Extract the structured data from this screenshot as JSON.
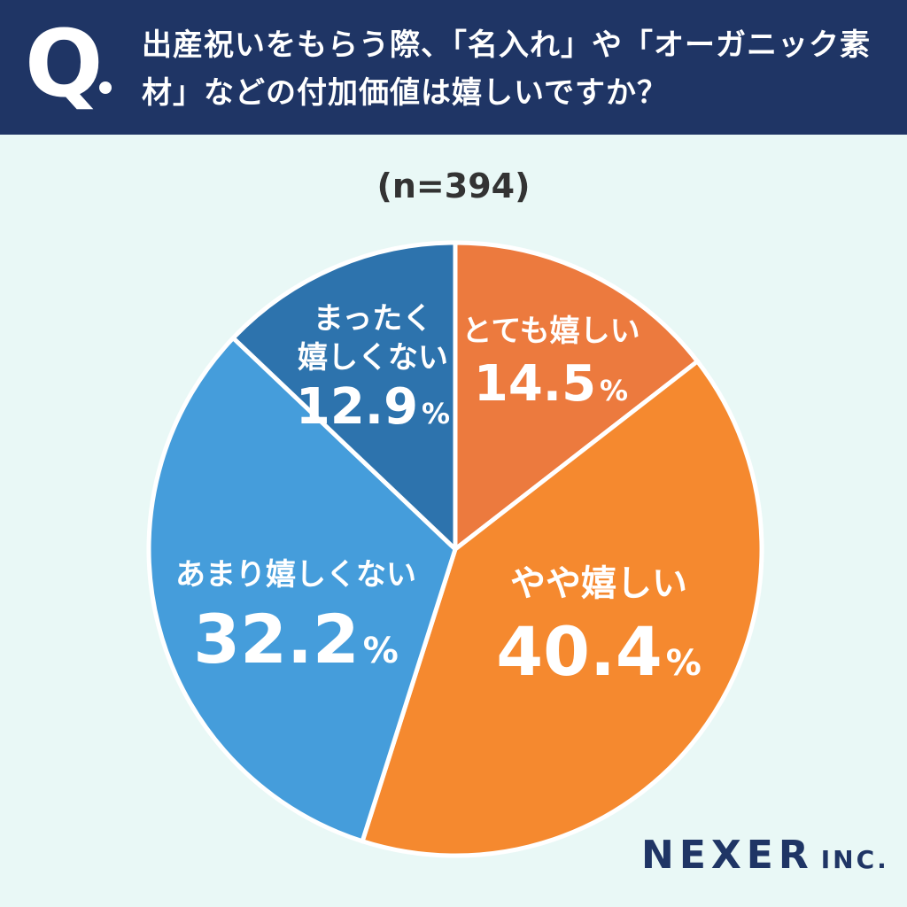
{
  "header": {
    "q_mark": "Q",
    "question": "出産祝いをもらう際、「名入れ」や「オーガニック素材」などの付加価値は嬉しいですか？"
  },
  "sample_size": "(n=394)",
  "brand": {
    "name": "NEXER",
    "suffix": "INC."
  },
  "colors": {
    "header_bg": "#1f3565",
    "background": "#e9f8f6",
    "slice_very": "#ec7a3e",
    "slice_somewhat": "#f5892f",
    "slice_not_much": "#459ddb",
    "slice_not_at_all": "#2d73ad"
  },
  "chart_data": {
    "type": "pie",
    "start": "top",
    "direction": "clockwise",
    "slices": [
      {
        "label_lines": [
          "とても嬉しい"
        ],
        "value": 14.5,
        "value_text": "14.5",
        "unit": "%",
        "color": "#ec7a3e"
      },
      {
        "label_lines": [
          "やや嬉しい"
        ],
        "value": 40.4,
        "value_text": "40.4",
        "unit": "%",
        "color": "#f5892f"
      },
      {
        "label_lines": [
          "あまり嬉しくない"
        ],
        "value": 32.2,
        "value_text": "32.2",
        "unit": "%",
        "color": "#459ddb"
      },
      {
        "label_lines": [
          "まったく",
          "嬉しくない"
        ],
        "value": 12.9,
        "value_text": "12.9",
        "unit": "%",
        "color": "#2d73ad"
      }
    ]
  }
}
